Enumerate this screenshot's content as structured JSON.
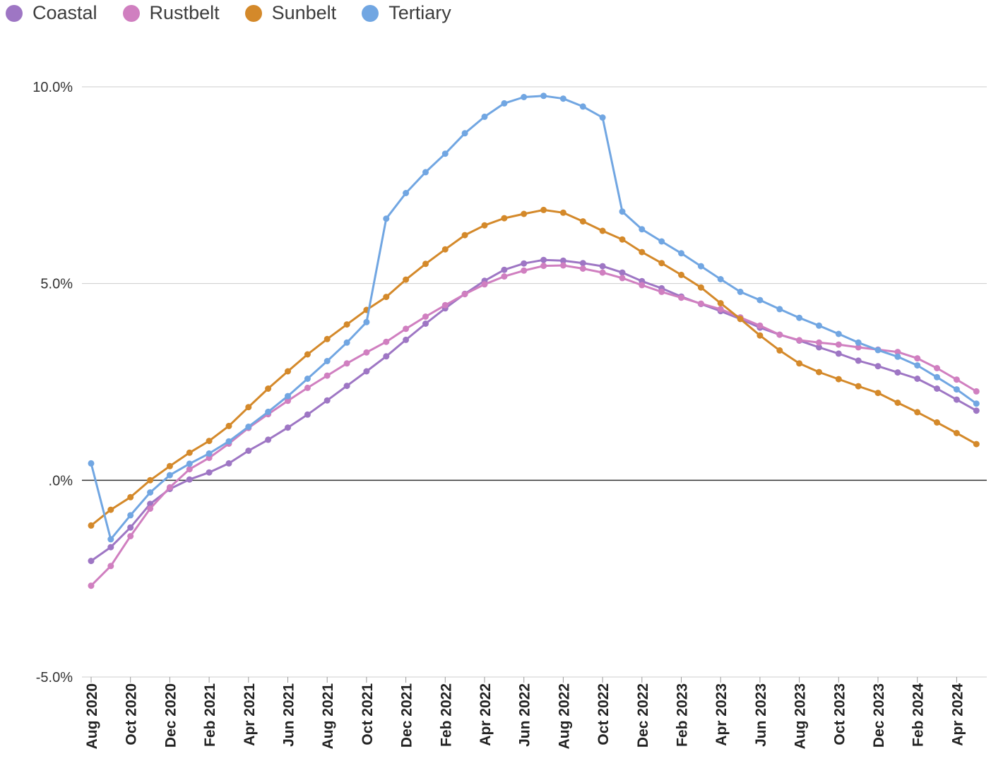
{
  "chart_data": {
    "type": "line",
    "title": "",
    "xlabel": "",
    "ylabel": "",
    "legend_position": "top-left",
    "grid": true,
    "ylim": [
      -5.0,
      10.0
    ],
    "y_ticks": [
      {
        "value": 10.0,
        "label": "10.0%"
      },
      {
        "value": 5.0,
        "label": "5.0%"
      },
      {
        "value": 0.0,
        "label": ".0%"
      },
      {
        "value": -5.0,
        "label": "-5.0%"
      }
    ],
    "x_tick_labels": [
      "Aug 2020",
      "Oct 2020",
      "Dec 2020",
      "Feb 2021",
      "Apr 2021",
      "Jun 2021",
      "Aug 2021",
      "Oct 2021",
      "Dec 2021",
      "Feb 2022",
      "Apr 2022",
      "Jun 2022",
      "Aug 2022",
      "Oct 2022",
      "Dec 2022",
      "Feb 2023",
      "Apr 2023",
      "Jun 2023",
      "Aug 2023",
      "Oct 2023",
      "Dec 2023",
      "Feb 2024",
      "Apr 2024"
    ],
    "x": [
      "Aug 2020",
      "Sep 2020",
      "Oct 2020",
      "Nov 2020",
      "Dec 2020",
      "Jan 2021",
      "Feb 2021",
      "Mar 2021",
      "Apr 2021",
      "May 2021",
      "Jun 2021",
      "Jul 2021",
      "Aug 2021",
      "Sep 2021",
      "Oct 2021",
      "Nov 2021",
      "Dec 2021",
      "Jan 2022",
      "Feb 2022",
      "Mar 2022",
      "Apr 2022",
      "May 2022",
      "Jun 2022",
      "Jul 2022",
      "Aug 2022",
      "Sep 2022",
      "Oct 2022",
      "Nov 2022",
      "Dec 2022",
      "Jan 2023",
      "Feb 2023",
      "Mar 2023",
      "Apr 2023",
      "May 2023",
      "Jun 2023",
      "Jul 2023",
      "Aug 2023",
      "Sep 2023",
      "Oct 2023",
      "Nov 2023",
      "Dec 2023",
      "Jan 2024",
      "Feb 2024",
      "Mar 2024",
      "Apr 2024",
      "May 2024"
    ],
    "series": [
      {
        "name": "Coastal",
        "color": "#9e76c4",
        "values": [
          -2.05,
          -1.7,
          -1.2,
          -0.6,
          -0.22,
          0.02,
          0.2,
          0.43,
          0.75,
          1.03,
          1.34,
          1.67,
          2.03,
          2.4,
          2.77,
          3.15,
          3.57,
          3.98,
          4.37,
          4.74,
          5.07,
          5.35,
          5.51,
          5.6,
          5.58,
          5.52,
          5.44,
          5.28,
          5.06,
          4.88,
          4.67,
          4.48,
          4.3,
          4.1,
          3.88,
          3.7,
          3.55,
          3.38,
          3.22,
          3.04,
          2.9,
          2.74,
          2.58,
          2.33,
          2.05,
          1.77
        ]
      },
      {
        "name": "Rustbelt",
        "color": "#d07fc0",
        "values": [
          -2.68,
          -2.18,
          -1.42,
          -0.72,
          -0.18,
          0.28,
          0.57,
          0.93,
          1.33,
          1.68,
          2.02,
          2.35,
          2.66,
          2.97,
          3.25,
          3.52,
          3.85,
          4.16,
          4.45,
          4.73,
          4.98,
          5.18,
          5.33,
          5.45,
          5.46,
          5.38,
          5.28,
          5.14,
          4.96,
          4.79,
          4.64,
          4.49,
          4.35,
          4.14,
          3.93,
          3.7,
          3.56,
          3.5,
          3.45,
          3.38,
          3.32,
          3.26,
          3.1,
          2.85,
          2.56,
          2.26
        ]
      },
      {
        "name": "Sunbelt",
        "color": "#d4892a",
        "values": [
          -1.15,
          -0.75,
          -0.43,
          0.0,
          0.36,
          0.7,
          1.0,
          1.38,
          1.86,
          2.33,
          2.77,
          3.2,
          3.59,
          3.96,
          4.33,
          4.66,
          5.1,
          5.5,
          5.87,
          6.23,
          6.48,
          6.66,
          6.77,
          6.87,
          6.8,
          6.58,
          6.34,
          6.12,
          5.8,
          5.52,
          5.22,
          4.9,
          4.5,
          4.1,
          3.68,
          3.3,
          2.97,
          2.75,
          2.57,
          2.39,
          2.22,
          1.97,
          1.73,
          1.47,
          1.2,
          0.92
        ]
      },
      {
        "name": "Tertiary",
        "color": "#71a6e2",
        "values": [
          0.43,
          -1.5,
          -0.89,
          -0.31,
          0.13,
          0.42,
          0.68,
          0.99,
          1.36,
          1.74,
          2.14,
          2.58,
          3.03,
          3.5,
          4.02,
          6.65,
          7.3,
          7.83,
          8.3,
          8.82,
          9.24,
          9.58,
          9.74,
          9.77,
          9.7,
          9.5,
          9.22,
          6.83,
          6.38,
          6.07,
          5.77,
          5.44,
          5.11,
          4.79,
          4.58,
          4.35,
          4.13,
          3.93,
          3.72,
          3.5,
          3.31,
          3.14,
          2.92,
          2.62,
          2.31,
          1.95
        ]
      }
    ]
  }
}
